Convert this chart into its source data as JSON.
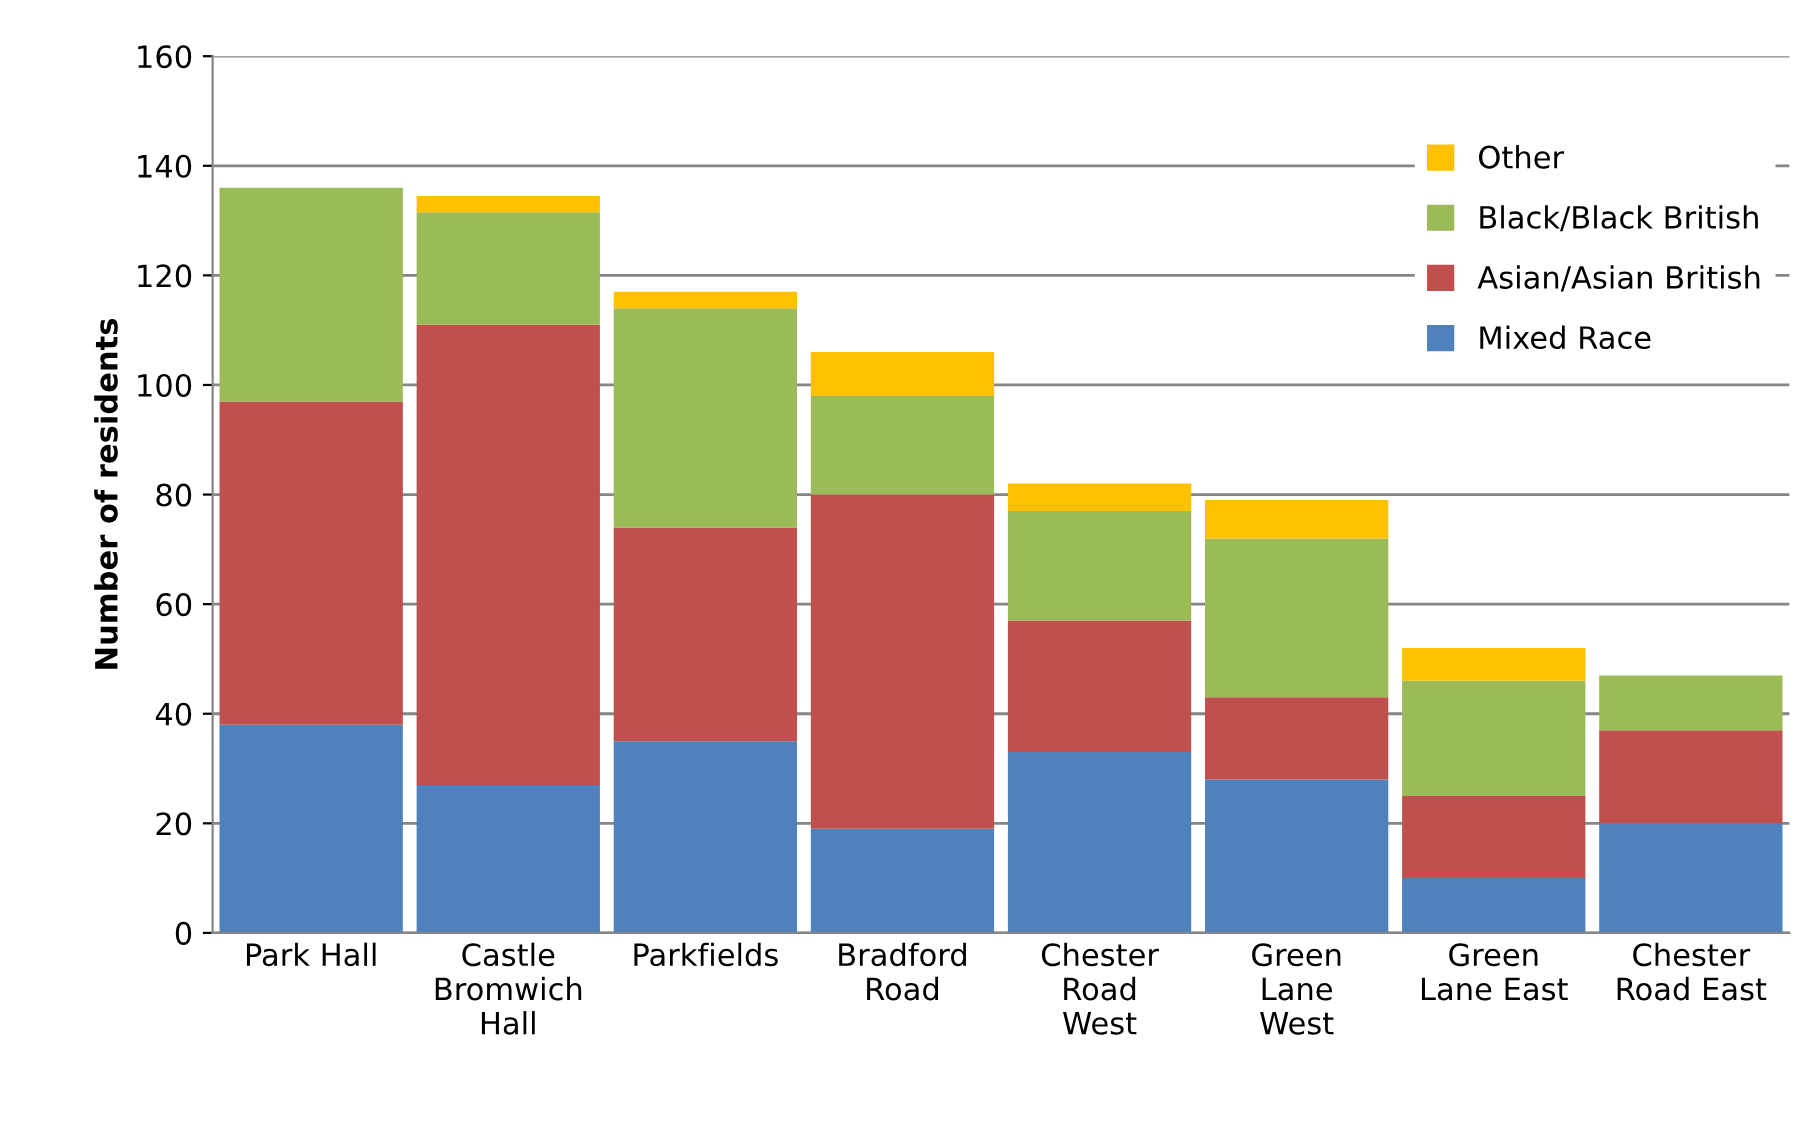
{
  "chart_data": {
    "type": "bar",
    "stacked": true,
    "ylabel": "Number of residents",
    "categories": [
      "Park Hall",
      "Castle\nBromwich\nHall",
      "Parkfields",
      "Bradford\nRoad",
      "Chester\nRoad\nWest",
      "Green\nLane\nWest",
      "Green\nLane East",
      "Chester\nRoad East"
    ],
    "series": [
      {
        "name": "Mixed Race",
        "color": "#4f81bd",
        "values": [
          38,
          27,
          35,
          19,
          33,
          28,
          10,
          20
        ]
      },
      {
        "name": "Asian/Asian British",
        "color": "#c0504d",
        "values": [
          59,
          84,
          39,
          61,
          24,
          15,
          15,
          17
        ]
      },
      {
        "name": "Black/Black British",
        "color": "#9bbb59",
        "values": [
          39,
          20.5,
          40,
          18,
          20,
          29,
          21,
          10
        ]
      },
      {
        "name": "Other",
        "color": "#ffc000",
        "values": [
          0,
          3,
          3,
          8,
          5,
          7,
          6,
          0
        ]
      }
    ],
    "ylim": [
      0,
      160
    ],
    "yticks": [
      0,
      20,
      40,
      60,
      80,
      100,
      120,
      140,
      160
    ],
    "grid": "y",
    "legend": "top right"
  }
}
